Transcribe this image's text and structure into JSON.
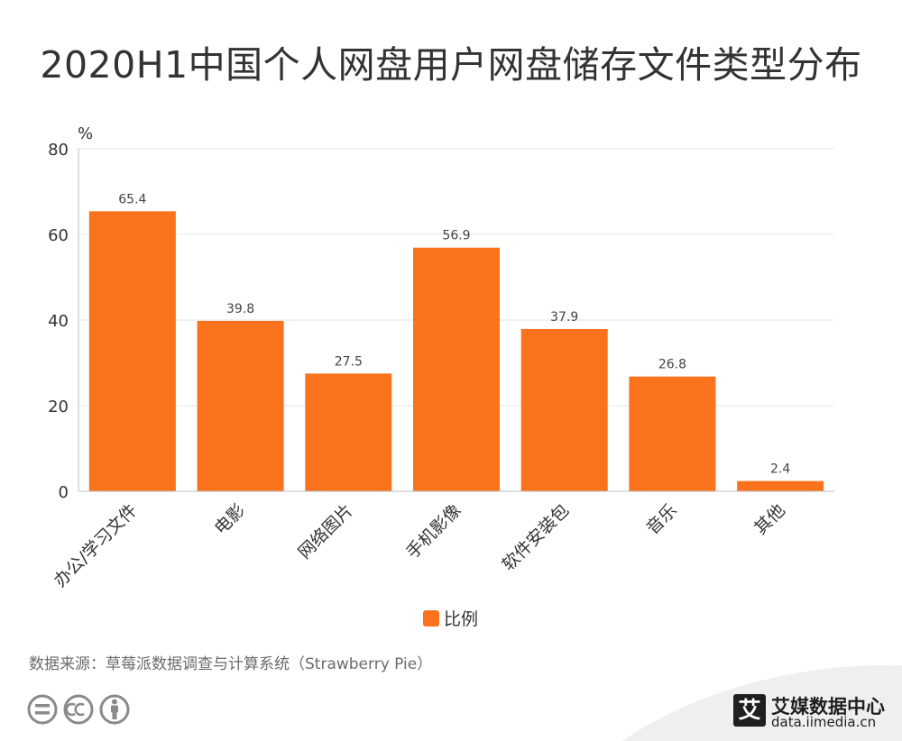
{
  "page": {
    "title": "2020H1中国个人网盘用户网盘储存文件类型分布",
    "source": "数据来源：草莓派数据调查与计算系统（Strawberry Pie）",
    "brand_mark": "艾",
    "brand_name": "艾媒数据中心",
    "brand_url": "data.iimedia.cn"
  },
  "colors": {
    "bar": "#FA721C",
    "grid": "#e6e6e6",
    "axis": "#bfbfbf",
    "text": "#333333"
  },
  "icons": [
    "equals-icon",
    "cc-icon",
    "person-icon"
  ],
  "chart_data": {
    "type": "bar",
    "ylabel": "%",
    "ylim": [
      0,
      80
    ],
    "yticks": [
      0,
      20,
      40,
      60,
      80
    ],
    "grid": true,
    "legend_position": "bottom",
    "categories": [
      "办公/学习文件",
      "电影",
      "网络图片",
      "手机影像",
      "软件安装包",
      "音乐",
      "其他"
    ],
    "series": [
      {
        "name": "比例",
        "values": [
          65.4,
          39.8,
          27.5,
          56.9,
          37.9,
          26.8,
          2.4
        ]
      }
    ]
  }
}
